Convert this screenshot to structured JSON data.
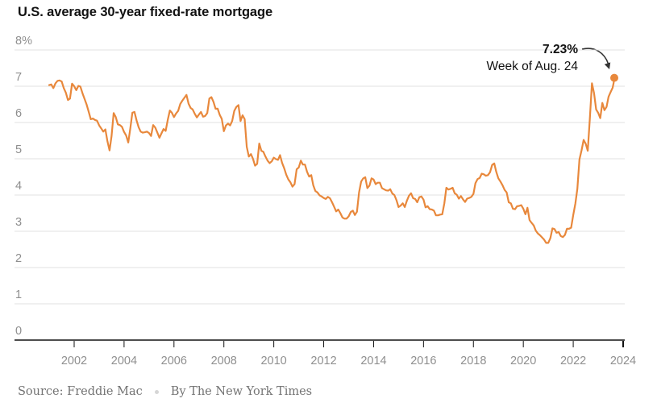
{
  "page": {
    "title": "U.S. average 30-year fixed-rate mortgage"
  },
  "annotation": {
    "value": "7.23%",
    "label": "Week of Aug. 24"
  },
  "source": {
    "text": "Source: Freddie Mac",
    "byline": "By The New York Times"
  },
  "colors": {
    "line": "#E8883C",
    "grid": "#E2E2E2",
    "axis": "#121212",
    "tick_label": "#8F8F8F",
    "title": "#121212",
    "annotation_text": "#121212",
    "arrow": "#333333",
    "source_text": "#737373",
    "separator_dot": "#D6D6D6",
    "background": "#FFFFFF"
  },
  "chart_data": {
    "type": "line",
    "title": "U.S. average 30-year fixed-rate mortgage",
    "unit": "percent",
    "legend": "none",
    "grid": true,
    "y_axis": {
      "tick_labels": [
        "8%",
        "7",
        "6",
        "5",
        "4",
        "3",
        "2",
        "1",
        "0"
      ],
      "tick_values": [
        8,
        7,
        6,
        5,
        4,
        3,
        2,
        1,
        0
      ],
      "range": [
        0,
        8
      ]
    },
    "x_axis": {
      "tick_years": [
        2002,
        2004,
        2006,
        2008,
        2010,
        2012,
        2014,
        2016,
        2018,
        2020,
        2022,
        2024
      ],
      "range_years": [
        1999.6,
        2024.05
      ]
    },
    "series": [
      {
        "name": "U.S. average 30-year fixed-rate mortgage",
        "start": "2001-01",
        "frequency": "monthly",
        "values": [
          7.03,
          7.05,
          6.95,
          7.08,
          7.15,
          7.16,
          7.13,
          6.95,
          6.82,
          6.62,
          6.66,
          7.07,
          7.0,
          6.89,
          7.01,
          6.99,
          6.81,
          6.65,
          6.49,
          6.29,
          6.09,
          6.11,
          6.07,
          6.05,
          5.92,
          5.84,
          5.75,
          5.81,
          5.48,
          5.23,
          5.63,
          6.26,
          6.15,
          5.95,
          5.93,
          5.88,
          5.74,
          5.64,
          5.45,
          5.83,
          6.27,
          6.29,
          6.06,
          5.87,
          5.75,
          5.72,
          5.73,
          5.75,
          5.71,
          5.63,
          5.93,
          5.86,
          5.72,
          5.58,
          5.7,
          5.82,
          5.77,
          6.07,
          6.33,
          6.27,
          6.15,
          6.25,
          6.32,
          6.51,
          6.6,
          6.68,
          6.76,
          6.52,
          6.4,
          6.36,
          6.24,
          6.14,
          6.22,
          6.29,
          6.16,
          6.18,
          6.26,
          6.66,
          6.7,
          6.57,
          6.38,
          6.38,
          6.21,
          6.1,
          5.76,
          5.92,
          5.97,
          5.92,
          6.04,
          6.32,
          6.43,
          6.48,
          6.04,
          6.2,
          6.09,
          5.33,
          5.06,
          5.13,
          5.0,
          4.81,
          4.86,
          5.42,
          5.22,
          5.19,
          5.06,
          4.95,
          4.88,
          4.93,
          5.03,
          4.99,
          4.97,
          5.1,
          4.89,
          4.74,
          4.56,
          4.43,
          4.35,
          4.23,
          4.3,
          4.71,
          4.76,
          4.95,
          4.84,
          4.84,
          4.64,
          4.51,
          4.55,
          4.27,
          4.11,
          4.07,
          3.99,
          3.96,
          3.92,
          3.89,
          3.95,
          3.91,
          3.8,
          3.68,
          3.55,
          3.6,
          3.5,
          3.38,
          3.35,
          3.35,
          3.41,
          3.53,
          3.57,
          3.45,
          3.54,
          4.07,
          4.37,
          4.46,
          4.49,
          4.19,
          4.26,
          4.46,
          4.43,
          4.3,
          4.34,
          4.34,
          4.19,
          4.16,
          4.13,
          4.12,
          4.16,
          4.04,
          4.0,
          3.86,
          3.67,
          3.71,
          3.77,
          3.67,
          3.84,
          3.98,
          4.05,
          3.91,
          3.89,
          3.8,
          3.94,
          3.96,
          3.87,
          3.66,
          3.69,
          3.61,
          3.6,
          3.57,
          3.44,
          3.44,
          3.46,
          3.47,
          3.77,
          4.2,
          4.15,
          4.17,
          4.2,
          4.05,
          4.01,
          3.9,
          3.97,
          3.88,
          3.81,
          3.9,
          3.92,
          3.95,
          4.03,
          4.33,
          4.44,
          4.47,
          4.59,
          4.57,
          4.53,
          4.55,
          4.63,
          4.83,
          4.87,
          4.64,
          4.46,
          4.37,
          4.27,
          4.14,
          4.07,
          3.8,
          3.77,
          3.62,
          3.61,
          3.69,
          3.7,
          3.72,
          3.62,
          3.47,
          3.65,
          3.31,
          3.23,
          3.16,
          3.02,
          2.94,
          2.89,
          2.83,
          2.77,
          2.68,
          2.68,
          2.81,
          3.08,
          3.06,
          2.96,
          2.98,
          2.87,
          2.84,
          2.9,
          3.07,
          3.07,
          3.1,
          3.45,
          3.76,
          4.17,
          4.98,
          5.23,
          5.52,
          5.41,
          5.22,
          6.11,
          7.08,
          6.81,
          6.36,
          6.27,
          6.12,
          6.54,
          6.34,
          6.43,
          6.71,
          6.84
        ]
      }
    ],
    "weekly_tail": [
      {
        "year_decimal": 2023.58,
        "value": 6.96
      },
      {
        "year_decimal": 2023.62,
        "value": 7.09
      },
      {
        "year_decimal": 2023.646,
        "value": 7.23
      }
    ],
    "end_point": {
      "value": 7.23,
      "label": "7.23%",
      "sublabel": "Week of Aug. 24"
    }
  }
}
